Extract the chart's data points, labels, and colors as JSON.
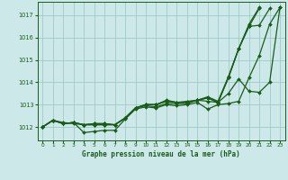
{
  "background_color": "#cce8e8",
  "line_color": "#1a5c1a",
  "grid_color": "#a0c8c8",
  "title": "Graphe pression niveau de la mer (hPa)",
  "xlim": [
    -0.5,
    23.5
  ],
  "ylim": [
    1011.4,
    1017.6
  ],
  "yticks": [
    1012,
    1013,
    1014,
    1015,
    1016,
    1017
  ],
  "xticks": [
    0,
    1,
    2,
    3,
    4,
    5,
    6,
    7,
    8,
    9,
    10,
    11,
    12,
    13,
    14,
    15,
    16,
    17,
    18,
    19,
    20,
    21,
    22,
    23
  ],
  "series": [
    {
      "x": [
        0,
        1,
        2,
        3,
        4,
        5,
        6,
        7,
        8,
        9,
        10,
        11,
        12,
        13,
        14,
        15,
        16,
        17,
        18,
        19,
        20,
        21,
        22,
        23
      ],
      "y": [
        1012.0,
        1012.3,
        1012.2,
        1012.15,
        1012.1,
        1012.1,
        1012.1,
        1012.1,
        1012.4,
        1012.85,
        1013.0,
        1013.0,
        1013.2,
        1013.1,
        1013.15,
        1013.2,
        1013.3,
        1013.1,
        1014.2,
        1015.5,
        1016.5,
        1016.55,
        1017.3,
        null
      ]
    },
    {
      "x": [
        0,
        1,
        2,
        3,
        4,
        5,
        6,
        7,
        8,
        9,
        10,
        11,
        12,
        13,
        14,
        15,
        16,
        17,
        18,
        19,
        20,
        21,
        22,
        23
      ],
      "y": [
        1012.0,
        1012.3,
        1012.15,
        1012.2,
        1011.75,
        1011.8,
        1011.85,
        1011.85,
        1012.35,
        1012.8,
        1012.9,
        1012.85,
        1013.0,
        1012.95,
        1013.0,
        1013.1,
        1012.8,
        1013.0,
        1013.05,
        1013.15,
        1014.2,
        1015.2,
        1016.6,
        1017.35
      ]
    },
    {
      "x": [
        0,
        1,
        2,
        3,
        4,
        5,
        6,
        7,
        8,
        9,
        10,
        11,
        12,
        13,
        14,
        15,
        16,
        17,
        18,
        19,
        20,
        21,
        22,
        23
      ],
      "y": [
        1012.0,
        1012.3,
        1012.15,
        1012.2,
        1012.1,
        1012.1,
        1012.1,
        1012.1,
        1012.4,
        1012.85,
        1012.95,
        1012.9,
        1013.05,
        1013.05,
        1013.05,
        1013.2,
        1013.15,
        1013.1,
        1013.5,
        1014.15,
        1013.6,
        1013.55,
        1014.0,
        1017.35
      ]
    },
    {
      "x": [
        0,
        1,
        2,
        3,
        4,
        5,
        6,
        7,
        8,
        9,
        10,
        11,
        12,
        13,
        14,
        15,
        16,
        17,
        18,
        19,
        20,
        21,
        22,
        23
      ],
      "y": [
        1012.0,
        1012.3,
        1012.15,
        1012.2,
        1012.1,
        1012.15,
        1012.15,
        1012.1,
        1012.4,
        1012.85,
        1013.0,
        1013.0,
        1013.15,
        1013.1,
        1013.1,
        1013.2,
        1013.3,
        1013.1,
        1014.2,
        1015.5,
        1016.5,
        1017.3,
        null,
        null
      ]
    },
    {
      "x": [
        0,
        1,
        2,
        3,
        4,
        5,
        6,
        7,
        8,
        9,
        10,
        11,
        12,
        13,
        14,
        15,
        16,
        17,
        18,
        19,
        20,
        21
      ],
      "y": [
        1012.0,
        1012.3,
        1012.15,
        1012.2,
        1012.1,
        1012.15,
        1012.15,
        1012.1,
        1012.4,
        1012.85,
        1013.0,
        1013.0,
        1013.15,
        1013.1,
        1013.1,
        1013.2,
        1013.35,
        1013.15,
        1014.25,
        1015.5,
        1016.6,
        1017.35
      ]
    }
  ],
  "marker": "D",
  "markersize": 2,
  "linewidth": 0.9
}
